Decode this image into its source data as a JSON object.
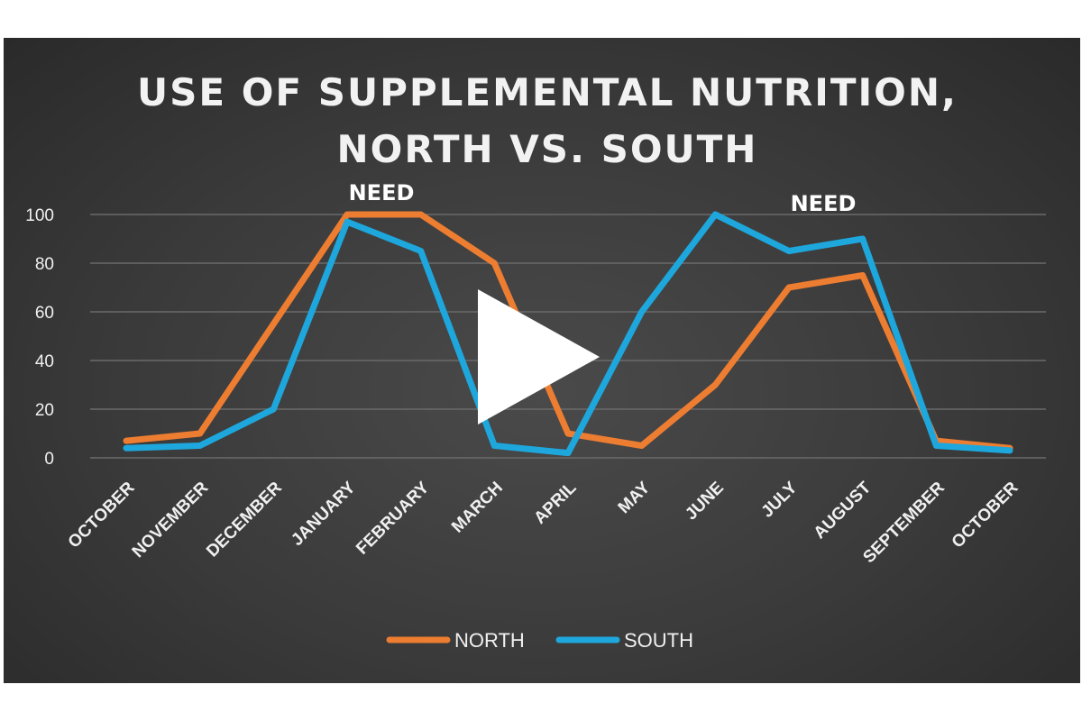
{
  "chart_data": {
    "type": "line",
    "title": [
      "USE OF SUPPLEMENTAL NUTRITION,",
      "NORTH VS. SOUTH"
    ],
    "categories": [
      "OCTOBER",
      "NOVEMBER",
      "DECEMBER",
      "JANUARY",
      "FEBRUARY",
      "MARCH",
      "APRIL",
      "MAY",
      "JUNE",
      "JULY",
      "AUGUST",
      "SEPTEMBER",
      "OCTOBER"
    ],
    "series": [
      {
        "name": "NORTH",
        "color": "#ed7d31",
        "values": [
          7,
          10,
          55,
          100,
          100,
          80,
          10,
          5,
          30,
          70,
          75,
          7,
          4
        ]
      },
      {
        "name": "SOUTH",
        "color": "#1ea7dc",
        "values": [
          4,
          5,
          20,
          97,
          85,
          5,
          2,
          60,
          100,
          85,
          90,
          5,
          3
        ]
      }
    ],
    "ylim": [
      0,
      100
    ],
    "yticks": [
      0,
      20,
      40,
      60,
      80,
      100
    ],
    "grid": true,
    "legend": "bottom",
    "annotations": [
      {
        "text": "NEED",
        "category_index": 3,
        "y": 100
      },
      {
        "text": "NEED",
        "category_index": 9,
        "y": 100
      }
    ]
  },
  "player": {
    "play_icon": "play-icon"
  }
}
